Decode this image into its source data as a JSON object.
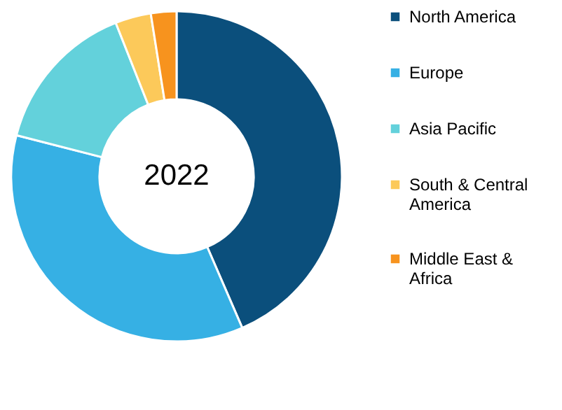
{
  "chart_data": {
    "type": "donut",
    "title": "2022",
    "categories": [
      "North America",
      "Europe",
      "Asia Pacific",
      "South & Central America",
      "Middle East & Africa"
    ],
    "values": [
      43.5,
      35.5,
      15,
      3.5,
      2.5
    ],
    "colors": [
      "#0b4f7c",
      "#36b0e4",
      "#63d1db",
      "#fcc95a",
      "#f7931e"
    ],
    "legend": "right"
  }
}
